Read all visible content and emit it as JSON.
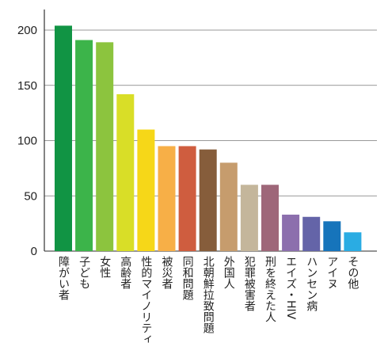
{
  "chart_data": {
    "type": "bar",
    "title": "",
    "xlabel": "",
    "ylabel": "",
    "ylim": [
      0,
      210
    ],
    "yticks": [
      0,
      50,
      100,
      150,
      200
    ],
    "grid": "horizontal",
    "legend": "none",
    "categories": [
      "障がい者",
      "子ども",
      "女性",
      "高齢者",
      "性的マイノリティ",
      "被災者",
      "同和問題",
      "北朝鮮拉致問題",
      "外国人",
      "犯罪被害者",
      "刑を終えた人",
      "エイズ・HIV",
      "ハンセン病",
      "アイヌ",
      "その他"
    ],
    "values": [
      204,
      191,
      189,
      142,
      110,
      95,
      95,
      92,
      80,
      60,
      60,
      33,
      31,
      27,
      17
    ],
    "colors": [
      "#119444",
      "#3cb44a",
      "#8cc43e",
      "#d9de27",
      "#f6d718",
      "#f7af47",
      "#cf5d3f",
      "#865d3b",
      "#c69c6d",
      "#c4b69b",
      "#9e6779",
      "#8c6fad",
      "#6464a8",
      "#1674bb",
      "#2aace3"
    ]
  }
}
